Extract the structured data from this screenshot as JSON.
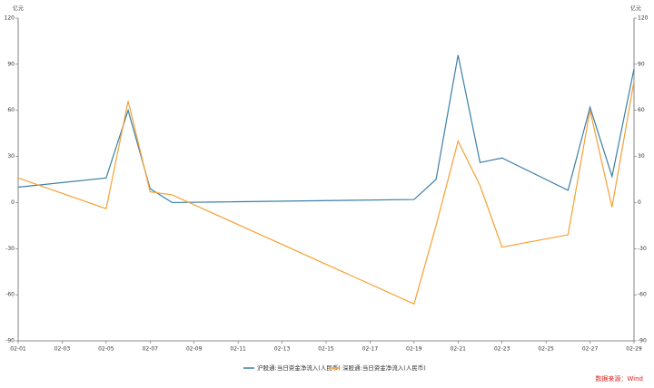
{
  "chart_data": {
    "type": "line",
    "y_label": "亿元",
    "y2_label": "亿元",
    "x": [
      "02-01",
      "02-05",
      "02-06",
      "02-07",
      "02-08",
      "02-19",
      "02-20",
      "02-21",
      "02-22",
      "02-23",
      "02-26",
      "02-27",
      "02-28",
      "02-29"
    ],
    "xlim": [
      "02-01",
      "02-29"
    ],
    "xticks": [
      "02-01",
      "02-03",
      "02-05",
      "02-07",
      "02-09",
      "02-11",
      "02-13",
      "02-15",
      "02-17",
      "02-19",
      "02-21",
      "02-23",
      "02-25",
      "02-27",
      "02-29"
    ],
    "ylim": [
      -90,
      120
    ],
    "yticks": [
      -90,
      -60,
      -30,
      0,
      30,
      60,
      90,
      120
    ],
    "y2lim": [
      -90,
      120
    ],
    "y2ticks": [
      -90,
      -60,
      -30,
      0,
      30,
      60,
      90,
      120
    ],
    "series": [
      {
        "name": "沪股通:当日资金净流入(人民币)",
        "color": "#3b7fa8",
        "values": [
          10,
          16,
          60,
          9,
          0,
          2,
          15,
          96,
          26,
          29,
          8,
          62,
          17,
          87
        ]
      },
      {
        "name": "深股通:当日资金净流入(人民币)",
        "color": "#f5a033",
        "values": [
          16,
          -4,
          66,
          7,
          5,
          -66,
          -15,
          40,
          11,
          -29,
          -21,
          60,
          -3,
          79
        ]
      }
    ],
    "source": "数据来源：Wind"
  }
}
